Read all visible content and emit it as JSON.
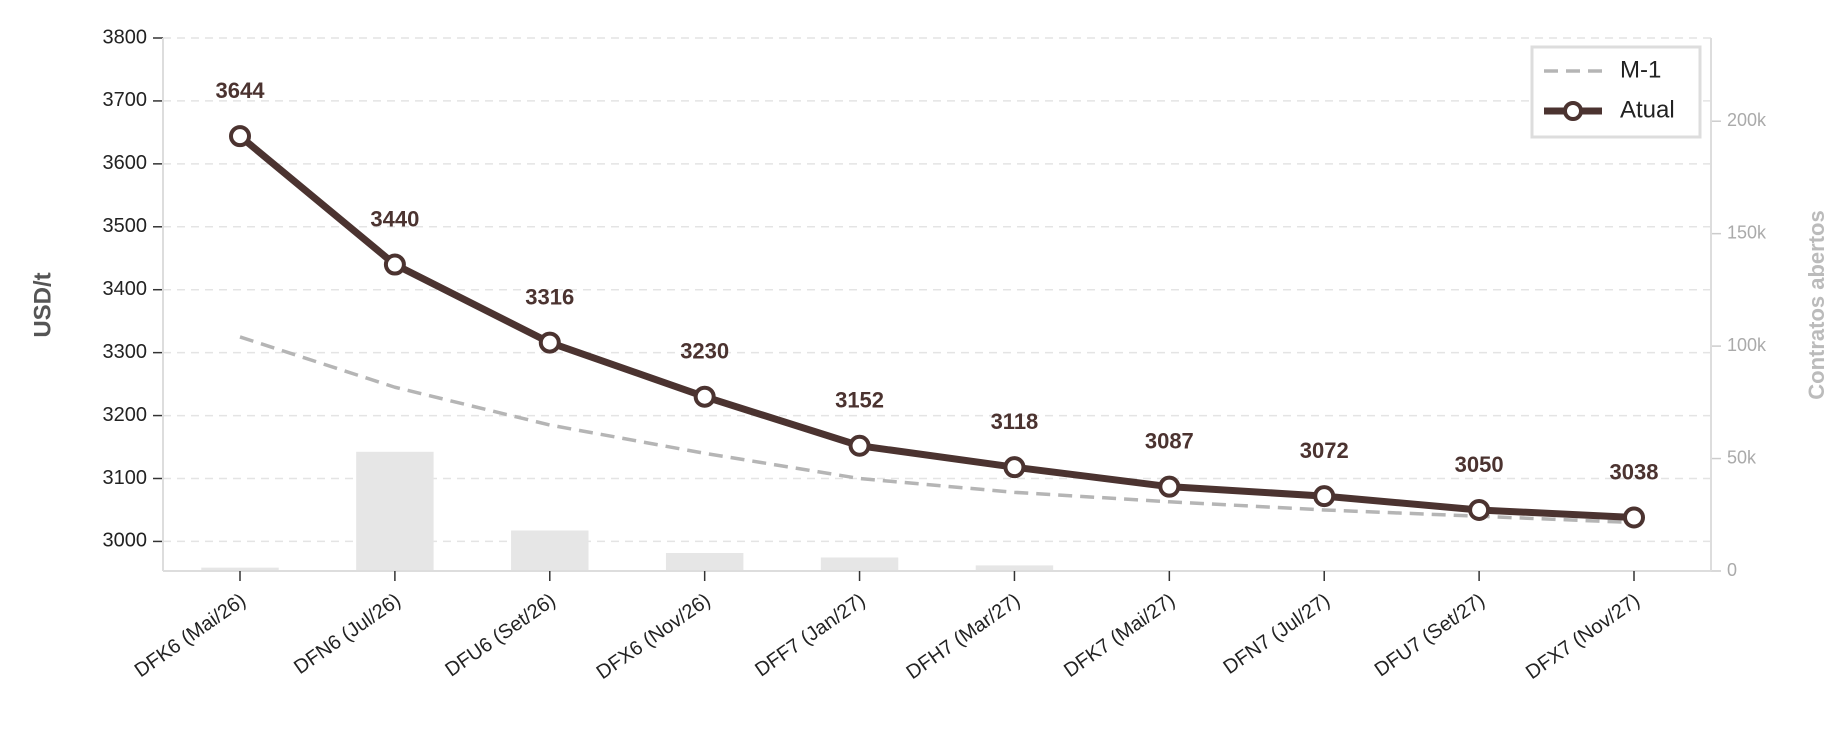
{
  "chart_data": {
    "type": "line",
    "y_label": "USD/t",
    "y2_label": "Contratos abertos",
    "categories": [
      "DFK6 (Mai/26)",
      "DFN6 (Jul/26)",
      "DFU6 (Set/26)",
      "DFX6 (Nov/26)",
      "DFF7 (Jan/27)",
      "DFH7 (Mar/27)",
      "DFK7 (Mai/27)",
      "DFN7 (Jul/27)",
      "DFU7 (Set/27)",
      "DFX7 (Nov/27)"
    ],
    "series": [
      {
        "name": "M-1",
        "color": "#b5b5b5",
        "dashed": true,
        "values": [
          3325,
          3245,
          3185,
          3140,
          3100,
          3078,
          3063,
          3050,
          3040,
          3030
        ]
      },
      {
        "name": "Atual",
        "color": "#4b3330",
        "markers": true,
        "values": [
          3644,
          3440,
          3316,
          3230,
          3152,
          3118,
          3087,
          3072,
          3050,
          3038
        ]
      }
    ],
    "bars": {
      "color": "#e6e6e6",
      "axis": "y2",
      "values": [
        1500,
        53000,
        18000,
        8000,
        6000,
        2500,
        0,
        0,
        0,
        0
      ]
    },
    "ylim": [
      2953,
      3800
    ],
    "yticks": [
      3000,
      3100,
      3200,
      3300,
      3400,
      3500,
      3600,
      3700,
      3800
    ],
    "y2lim": [
      0,
      237000
    ],
    "y2ticks": [
      0,
      {
        "value": 50000,
        "label": "50k"
      },
      {
        "value": 100000,
        "label": "100k"
      },
      {
        "value": 150000,
        "label": "150k"
      },
      {
        "value": 200000,
        "label": "200k"
      }
    ],
    "grid": true,
    "legend": "upper right"
  }
}
